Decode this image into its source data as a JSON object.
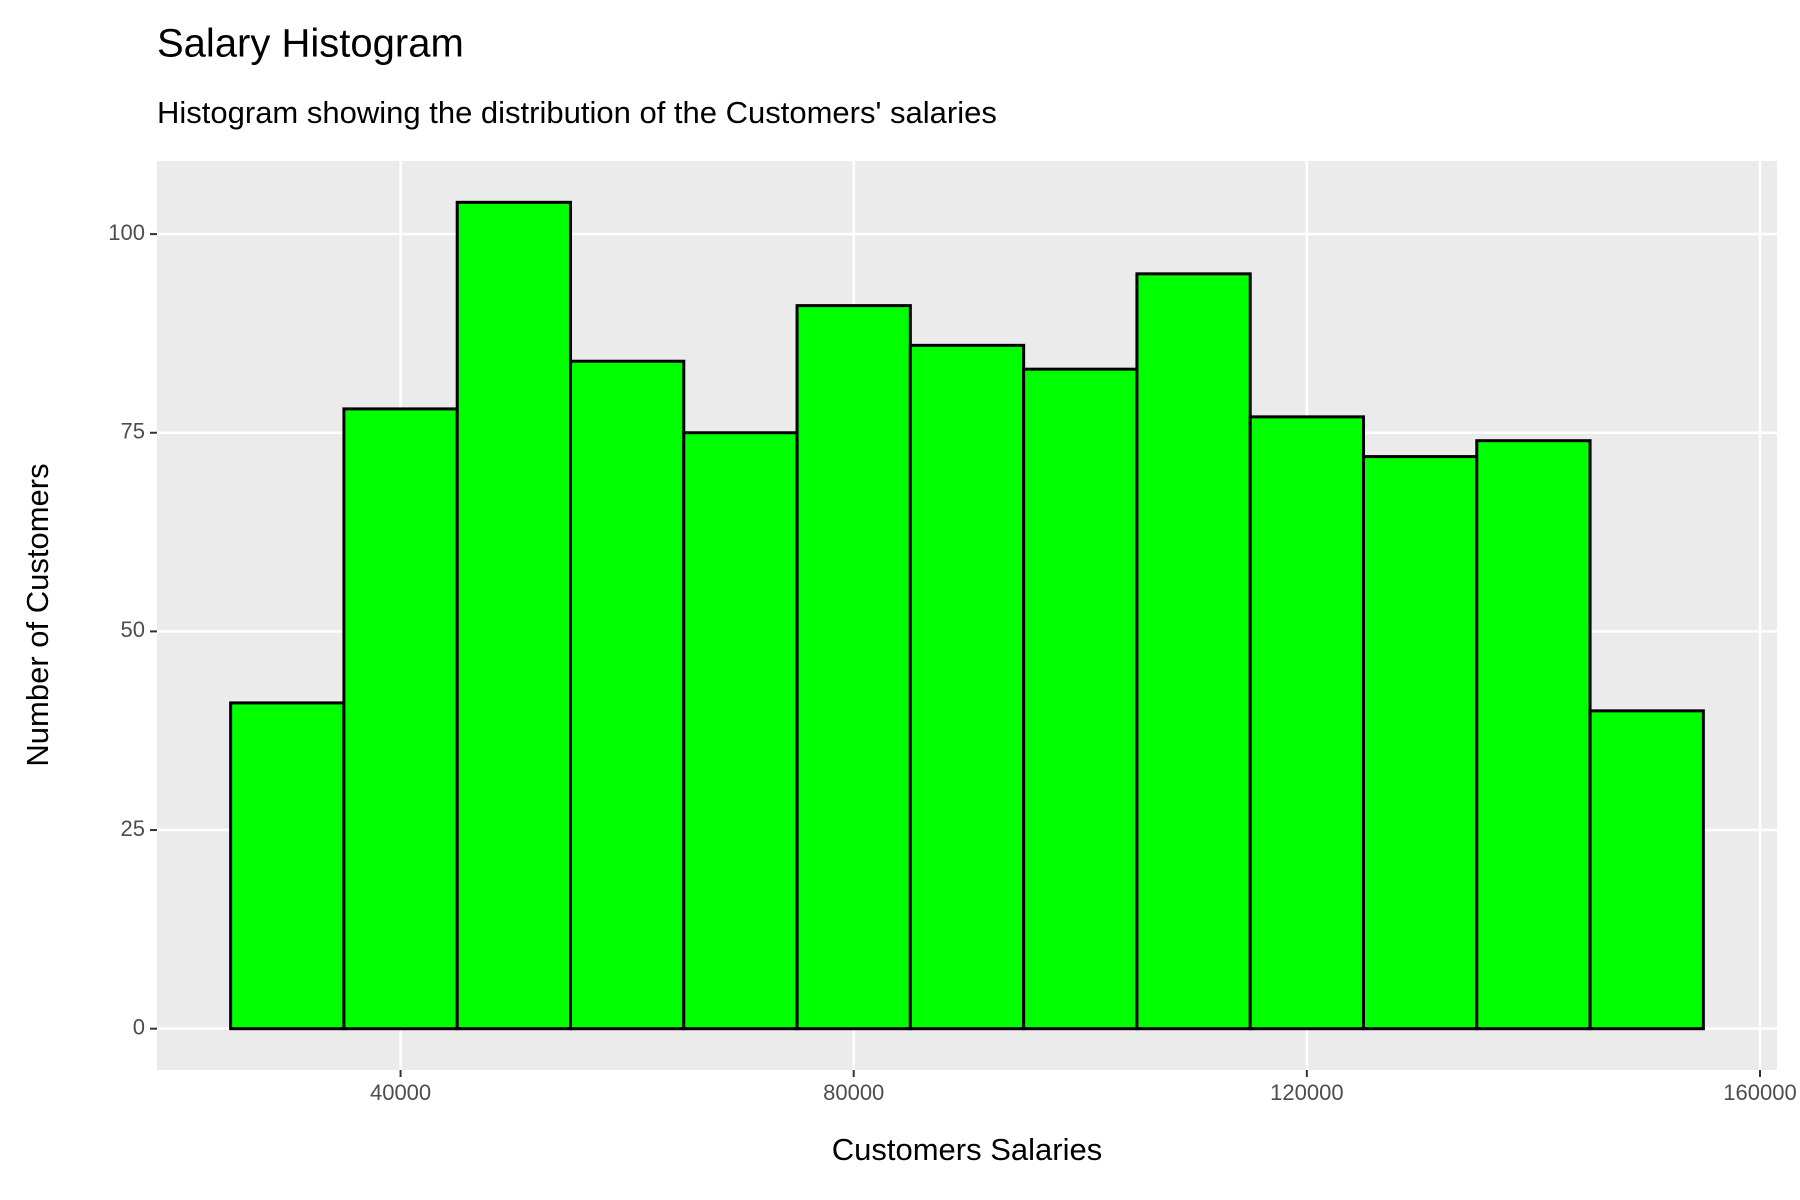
{
  "chart_data": {
    "type": "histogram",
    "title": "Salary Histogram",
    "subtitle": "Histogram showing the distribution of the Customers' salaries",
    "x_label": "Customers Salaries",
    "y_label": "Number of Customers",
    "bins": [
      25000,
      35000,
      45000,
      55000,
      65000,
      75000,
      85000,
      95000,
      105000,
      115000,
      125000,
      135000,
      145000,
      155000
    ],
    "values": [
      41,
      78,
      104,
      84,
      75,
      91,
      86,
      83,
      95,
      77,
      72,
      74,
      40
    ],
    "color": "#00ff00",
    "edge_color": "#000000",
    "xlim": [
      18500,
      161500
    ],
    "xticks": [
      40000,
      80000,
      120000,
      160000
    ],
    "ylim": [
      -5.2,
      109.2
    ],
    "yticks": [
      0,
      25,
      50,
      75,
      100
    ],
    "grid": true
  }
}
